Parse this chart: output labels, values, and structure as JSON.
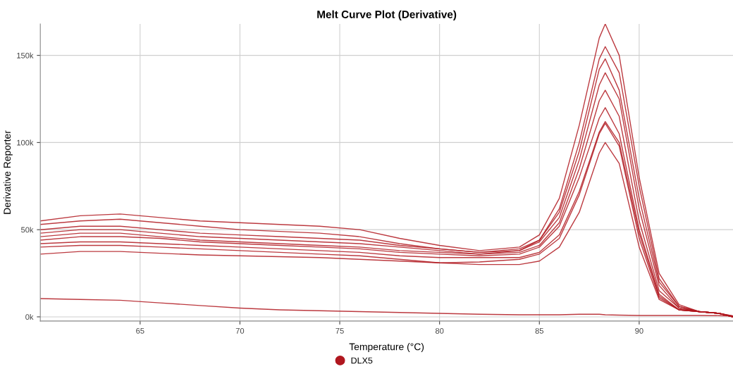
{
  "chart_data": {
    "type": "line",
    "title": "Melt Curve Plot (Derivative)",
    "xlabel": "Temperature (°C)",
    "ylabel": "Derivative Reporter",
    "x": [
      60,
      62,
      64,
      66,
      68,
      70,
      72,
      74,
      76,
      78,
      80,
      82,
      84,
      85,
      86,
      87,
      88,
      88.3,
      89,
      90,
      91,
      92,
      93,
      94,
      94.7
    ],
    "xlim": [
      60,
      94.7
    ],
    "xticks": [
      65,
      70,
      75,
      80,
      85,
      90
    ],
    "ylim": [
      -2400,
      168000
    ],
    "yticks": [
      {
        "value": 0,
        "label": "0k"
      },
      {
        "value": 50000,
        "label": "50k"
      },
      {
        "value": 100000,
        "label": "100k"
      },
      {
        "value": 150000,
        "label": "150k"
      }
    ],
    "grid": true,
    "legend": "bottom",
    "marker": "none",
    "line_style": "solid",
    "series": [
      {
        "name": "DLX5",
        "color": "#b0171f",
        "values": [
          55000,
          58000,
          59000,
          57000,
          55000,
          54000,
          53000,
          52000,
          50000,
          45000,
          41000,
          38000,
          40000,
          47000,
          68000,
          110000,
          160000,
          168000,
          150000,
          80000,
          25000,
          7000,
          3000,
          2000,
          0
        ]
      },
      {
        "color": "#b0171f",
        "values": [
          53000,
          55000,
          56000,
          54000,
          52000,
          50000,
          49000,
          48000,
          46000,
          42000,
          39000,
          37000,
          38000,
          44000,
          62000,
          100000,
          148000,
          155000,
          140000,
          75000,
          22000,
          6000,
          3000,
          2000,
          500
        ]
      },
      {
        "color": "#b0171f",
        "values": [
          50000,
          52000,
          52000,
          50000,
          48000,
          47000,
          46000,
          45000,
          44000,
          41000,
          39000,
          37000,
          39000,
          44000,
          60000,
          95000,
          142000,
          148000,
          130000,
          68000,
          20000,
          6000,
          3000,
          2000,
          500
        ]
      },
      {
        "color": "#b0171f",
        "values": [
          48000,
          50000,
          50000,
          48000,
          46000,
          45000,
          44000,
          43000,
          42000,
          40000,
          38000,
          36000,
          38000,
          43000,
          57000,
          90000,
          133000,
          140000,
          125000,
          62000,
          18000,
          5000,
          3000,
          2000,
          0
        ]
      },
      {
        "color": "#b0171f",
        "values": [
          46000,
          48000,
          48000,
          46000,
          44000,
          43000,
          42000,
          41000,
          40000,
          38000,
          37000,
          36000,
          37000,
          41000,
          54000,
          85000,
          124000,
          130000,
          115000,
          55000,
          15000,
          5000,
          3000,
          2000,
          0
        ]
      },
      {
        "color": "#b0171f",
        "values": [
          44000,
          46000,
          46000,
          45000,
          43000,
          42000,
          41000,
          40000,
          39000,
          37000,
          36000,
          35000,
          36000,
          40000,
          52000,
          80000,
          114000,
          120000,
          105000,
          50000,
          13000,
          4000,
          3000,
          2000,
          0
        ]
      },
      {
        "color": "#b0171f",
        "values": [
          42000,
          43000,
          43000,
          42000,
          41000,
          40000,
          39000,
          38000,
          37000,
          35000,
          34000,
          34000,
          34000,
          37000,
          47000,
          72000,
          106000,
          112000,
          100000,
          48000,
          12000,
          4000,
          3000,
          2000,
          0
        ]
      },
      {
        "color": "#b0171f",
        "values": [
          40000,
          41000,
          41000,
          40000,
          39000,
          38000,
          37000,
          36000,
          35000,
          33000,
          31000,
          30000,
          30000,
          32000,
          40000,
          60000,
          94000,
          100000,
          88000,
          40000,
          10000,
          4000,
          3000,
          2000,
          0
        ]
      },
      {
        "color": "#b0171f",
        "values": [
          36000,
          37500,
          37500,
          36500,
          35500,
          35000,
          34500,
          34000,
          33000,
          32000,
          31000,
          31500,
          33000,
          36000,
          45000,
          70000,
          105000,
          111000,
          98000,
          45000,
          11000,
          4000,
          3000,
          2000,
          0
        ]
      },
      {
        "color": "#b0171f",
        "values": [
          10500,
          10000,
          9500,
          8000,
          6500,
          5000,
          4000,
          3500,
          3000,
          2500,
          2000,
          1500,
          1200,
          1200,
          1200,
          1500,
          1500,
          1200,
          1000,
          800,
          800,
          800,
          800,
          700,
          500
        ]
      }
    ]
  }
}
